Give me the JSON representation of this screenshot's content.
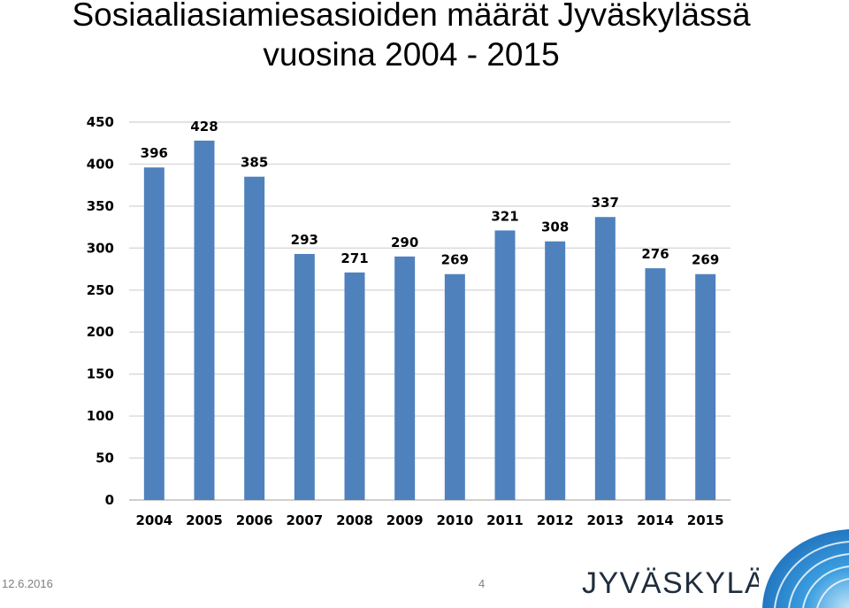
{
  "slide": {
    "title_line1": "Sosiaaliasiamiesasioiden määrät Jyväskylässä",
    "title_line2": "vuosina 2004 - 2015",
    "date": "12.6.2016",
    "page_number": "4",
    "logo_text": "JYVÄSKYLÄ"
  },
  "colors": {
    "bar": "#4f81bd",
    "grid": "#d9d9d9",
    "axis": "#bfbfbf",
    "logo": "#1f2d3d",
    "corner_blue": "#2a7dc9"
  },
  "chart_data": {
    "type": "bar",
    "categories": [
      "2004",
      "2005",
      "2006",
      "2007",
      "2008",
      "2009",
      "2010",
      "2011",
      "2012",
      "2013",
      "2014",
      "2015"
    ],
    "values": [
      396,
      428,
      385,
      293,
      271,
      290,
      269,
      321,
      308,
      337,
      276,
      269
    ],
    "ylim": [
      0,
      450
    ],
    "yticks": [
      0,
      50,
      100,
      150,
      200,
      250,
      300,
      350,
      400,
      450
    ],
    "grid": true,
    "data_labels": true,
    "legend": "none"
  }
}
